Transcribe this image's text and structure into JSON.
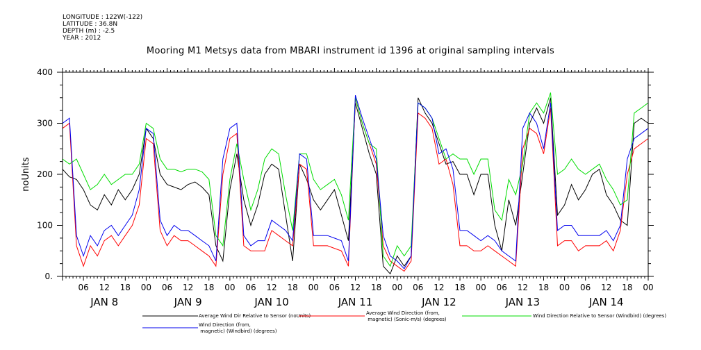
{
  "meta": {
    "longitude": "LONGITUDE : 122W(-122)",
    "latitude": "LATITUDE : 36.8N",
    "depth": "DEPTH (m) : -2.5",
    "year": "YEAR : 2012"
  },
  "chart_data": {
    "type": "line",
    "title": "Mooring M1 Metsys data from MBARI instrument id 1396 at original sampling intervals",
    "ylabel": "noUnits",
    "ylim": [
      0,
      400
    ],
    "y_ticks": [
      0,
      100,
      200,
      300,
      400
    ],
    "y_tick_labels": [
      "0.",
      "100",
      "200",
      "300",
      "400"
    ],
    "x_range_hours": [
      0,
      168
    ],
    "x_tick_labels": [
      {
        "h": 6,
        "t": "06"
      },
      {
        "h": 12,
        "t": "12"
      },
      {
        "h": 18,
        "t": "18"
      },
      {
        "h": 24,
        "t": "00"
      },
      {
        "h": 30,
        "t": "06"
      },
      {
        "h": 36,
        "t": "12"
      },
      {
        "h": 42,
        "t": "18"
      },
      {
        "h": 48,
        "t": "00"
      },
      {
        "h": 54,
        "t": "06"
      },
      {
        "h": 60,
        "t": "12"
      },
      {
        "h": 66,
        "t": "18"
      },
      {
        "h": 72,
        "t": "00"
      },
      {
        "h": 78,
        "t": "06"
      },
      {
        "h": 84,
        "t": "12"
      },
      {
        "h": 90,
        "t": "18"
      },
      {
        "h": 96,
        "t": "00"
      },
      {
        "h": 102,
        "t": "06"
      },
      {
        "h": 108,
        "t": "12"
      },
      {
        "h": 114,
        "t": "18"
      },
      {
        "h": 120,
        "t": "00"
      },
      {
        "h": 126,
        "t": "06"
      },
      {
        "h": 132,
        "t": "12"
      },
      {
        "h": 138,
        "t": "18"
      },
      {
        "h": 144,
        "t": "00"
      },
      {
        "h": 150,
        "t": "06"
      },
      {
        "h": 156,
        "t": "12"
      },
      {
        "h": 162,
        "t": "18"
      },
      {
        "h": 168,
        "t": "00"
      }
    ],
    "day_labels": [
      {
        "h": 12,
        "t": "JAN  8"
      },
      {
        "h": 36,
        "t": "JAN  9"
      },
      {
        "h": 60,
        "t": "JAN 10"
      },
      {
        "h": 84,
        "t": "JAN 11"
      },
      {
        "h": 108,
        "t": "JAN 12"
      },
      {
        "h": 132,
        "t": "JAN 13"
      },
      {
        "h": 156,
        "t": "JAN 14"
      }
    ],
    "series": [
      {
        "name": "Average Wind Dir Relative to Sensor (noUnits)",
        "color": "#000000",
        "x": [
          0,
          2,
          4,
          6,
          8,
          10,
          12,
          14,
          16,
          18,
          20,
          22,
          24,
          26,
          28,
          30,
          32,
          34,
          36,
          38,
          40,
          42,
          44,
          46,
          48,
          50,
          52,
          54,
          56,
          58,
          60,
          62,
          64,
          66,
          68,
          70,
          72,
          74,
          76,
          78,
          80,
          82,
          84,
          86,
          88,
          90,
          92,
          94,
          96,
          98,
          100,
          102,
          104,
          106,
          108,
          110,
          112,
          114,
          116,
          118,
          120,
          122,
          124,
          126,
          128,
          130,
          132,
          134,
          136,
          138,
          140,
          142,
          144,
          146,
          148,
          150,
          152,
          154,
          156,
          158,
          160,
          162,
          164,
          166,
          168
        ],
        "y": [
          210,
          195,
          190,
          170,
          140,
          130,
          160,
          140,
          170,
          150,
          170,
          200,
          290,
          270,
          200,
          180,
          175,
          170,
          180,
          185,
          175,
          160,
          60,
          30,
          170,
          240,
          150,
          100,
          140,
          200,
          220,
          210,
          120,
          30,
          220,
          190,
          150,
          130,
          150,
          170,
          120,
          70,
          340,
          290,
          240,
          200,
          20,
          5,
          40,
          20,
          40,
          350,
          320,
          300,
          260,
          220,
          225,
          200,
          200,
          160,
          200,
          200,
          100,
          50,
          150,
          100,
          200,
          300,
          330,
          300,
          350,
          120,
          140,
          180,
          150,
          170,
          200,
          210,
          160,
          140,
          110,
          100,
          300,
          310,
          300
        ]
      },
      {
        "name": "Average Wind Direction (from, magnetic) (Sonic-m/s) (degrees)",
        "color": "#ff0000",
        "x": [
          0,
          2,
          4,
          6,
          8,
          10,
          12,
          14,
          16,
          18,
          20,
          22,
          24,
          26,
          28,
          30,
          32,
          34,
          36,
          38,
          40,
          42,
          44,
          46,
          48,
          50,
          52,
          54,
          56,
          58,
          60,
          62,
          64,
          66,
          68,
          70,
          72,
          74,
          76,
          78,
          80,
          82,
          84,
          86,
          88,
          90,
          92,
          94,
          96,
          98,
          100,
          102,
          104,
          106,
          108,
          110,
          112,
          114,
          116,
          118,
          120,
          122,
          124,
          126,
          128,
          130,
          132,
          134,
          136,
          138,
          140,
          142,
          144,
          146,
          148,
          150,
          152,
          154,
          156,
          158,
          160,
          162,
          164,
          166,
          168
        ],
        "y": [
          290,
          300,
          60,
          20,
          60,
          40,
          70,
          80,
          60,
          80,
          100,
          140,
          270,
          260,
          90,
          60,
          80,
          70,
          70,
          60,
          50,
          40,
          20,
          200,
          270,
          280,
          60,
          50,
          50,
          50,
          90,
          80,
          70,
          60,
          220,
          210,
          60,
          60,
          60,
          55,
          50,
          20,
          350,
          300,
          260,
          220,
          60,
          30,
          20,
          10,
          30,
          320,
          310,
          290,
          220,
          230,
          180,
          60,
          60,
          50,
          50,
          60,
          50,
          40,
          30,
          20,
          250,
          290,
          280,
          240,
          330,
          60,
          70,
          70,
          50,
          60,
          60,
          60,
          70,
          50,
          90,
          200,
          250,
          260,
          270
        ]
      },
      {
        "name": "Wind Direction Relative to Sensor (Windbird) (degrees)",
        "color": "#00dd00",
        "x": [
          0,
          2,
          4,
          6,
          8,
          10,
          12,
          14,
          16,
          18,
          20,
          22,
          24,
          26,
          28,
          30,
          32,
          34,
          36,
          38,
          40,
          42,
          44,
          46,
          48,
          50,
          52,
          54,
          56,
          58,
          60,
          62,
          64,
          66,
          68,
          70,
          72,
          74,
          76,
          78,
          80,
          82,
          84,
          86,
          88,
          90,
          92,
          94,
          96,
          98,
          100,
          102,
          104,
          106,
          108,
          110,
          112,
          114,
          116,
          118,
          120,
          122,
          124,
          126,
          128,
          130,
          132,
          134,
          136,
          138,
          140,
          142,
          144,
          146,
          148,
          150,
          152,
          154,
          156,
          158,
          160,
          162,
          164,
          166,
          168
        ],
        "y": [
          230,
          220,
          230,
          200,
          170,
          180,
          200,
          180,
          190,
          200,
          200,
          220,
          300,
          290,
          230,
          210,
          210,
          205,
          210,
          210,
          205,
          190,
          80,
          60,
          190,
          260,
          190,
          130,
          170,
          230,
          250,
          240,
          160,
          90,
          240,
          240,
          190,
          170,
          180,
          190,
          160,
          110,
          350,
          300,
          260,
          250,
          40,
          20,
          60,
          40,
          60,
          340,
          330,
          310,
          270,
          230,
          240,
          230,
          230,
          200,
          230,
          230,
          130,
          110,
          190,
          160,
          220,
          320,
          340,
          320,
          360,
          200,
          210,
          230,
          210,
          200,
          210,
          220,
          190,
          170,
          140,
          150,
          320,
          330,
          340
        ]
      },
      {
        "name": "Wind Direction (from, magnetic) (Windbird) (degrees)",
        "color": "#0000ee",
        "x": [
          0,
          2,
          4,
          6,
          8,
          10,
          12,
          14,
          16,
          18,
          20,
          22,
          24,
          26,
          28,
          30,
          32,
          34,
          36,
          38,
          40,
          42,
          44,
          46,
          48,
          50,
          52,
          54,
          56,
          58,
          60,
          62,
          64,
          66,
          68,
          70,
          72,
          74,
          76,
          78,
          80,
          82,
          84,
          86,
          88,
          90,
          92,
          94,
          96,
          98,
          100,
          102,
          104,
          106,
          108,
          110,
          112,
          114,
          116,
          118,
          120,
          122,
          124,
          126,
          128,
          130,
          132,
          134,
          136,
          138,
          140,
          142,
          144,
          146,
          148,
          150,
          152,
          154,
          156,
          158,
          160,
          162,
          164,
          166,
          168
        ],
        "y": [
          300,
          310,
          80,
          40,
          80,
          60,
          90,
          100,
          80,
          100,
          120,
          170,
          290,
          280,
          110,
          80,
          100,
          90,
          90,
          80,
          70,
          60,
          30,
          230,
          290,
          300,
          80,
          60,
          70,
          70,
          110,
          100,
          90,
          70,
          240,
          230,
          80,
          80,
          80,
          75,
          70,
          30,
          355,
          310,
          270,
          230,
          80,
          40,
          30,
          15,
          40,
          340,
          330,
          310,
          240,
          250,
          210,
          90,
          90,
          80,
          70,
          80,
          70,
          50,
          40,
          30,
          290,
          320,
          300,
          250,
          340,
          90,
          100,
          100,
          80,
          80,
          80,
          80,
          90,
          70,
          100,
          230,
          270,
          280,
          290
        ]
      }
    ]
  }
}
